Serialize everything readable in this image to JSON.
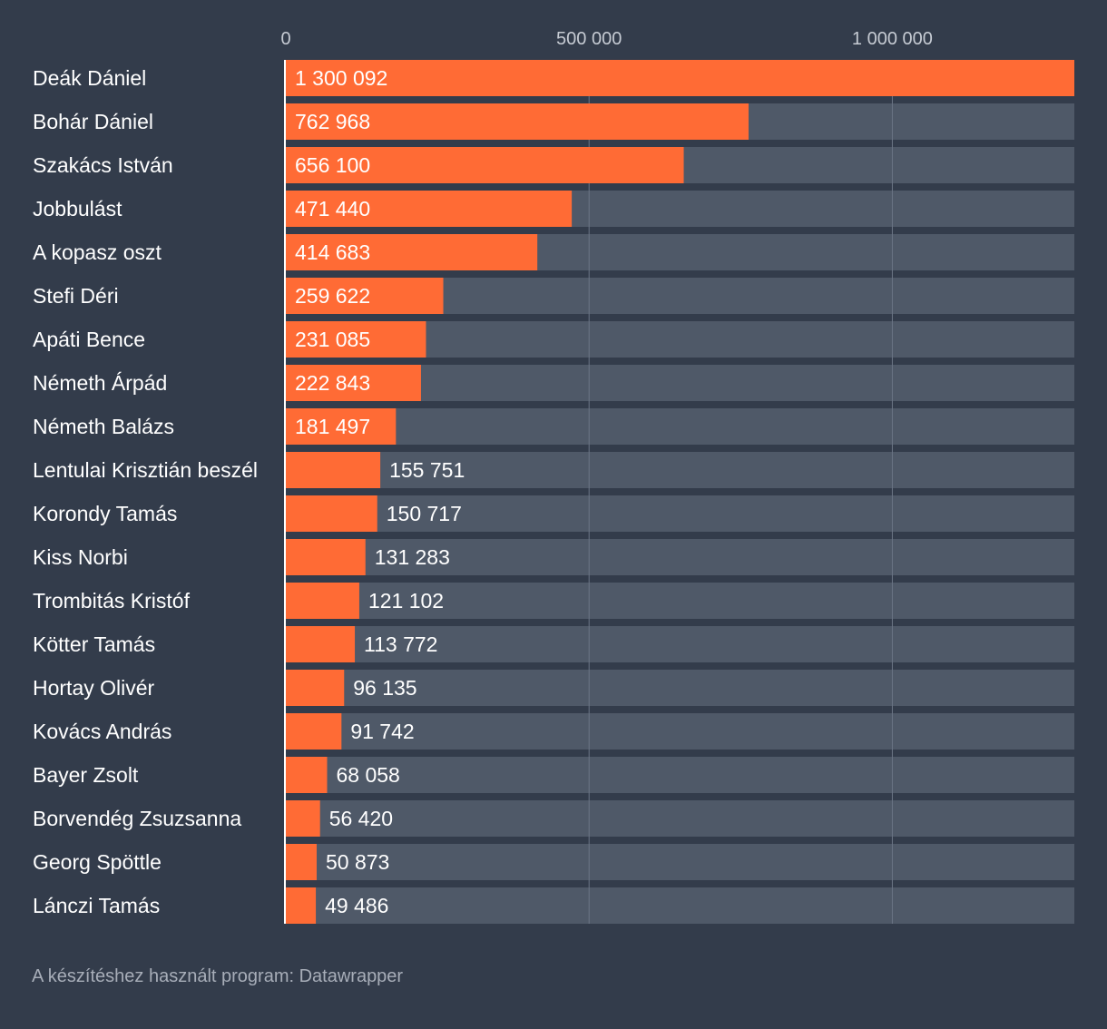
{
  "chart_data": {
    "type": "bar",
    "orientation": "horizontal",
    "title": "",
    "xlabel": "",
    "ylabel": "",
    "xlim": [
      0,
      1300092
    ],
    "ticks": [
      0,
      500000,
      1000000
    ],
    "tick_labels": [
      "0",
      "500 000",
      "1 000 000"
    ],
    "categories": [
      "Deák Dániel",
      "Bohár Dániel",
      "Szakács István",
      "Jobbulást",
      "A kopasz oszt",
      "Stefi Déri",
      "Apáti Bence",
      "Németh Árpád",
      "Németh Balázs",
      "Lentulai Krisztián beszél",
      "Korondy Tamás",
      "Kiss Norbi",
      "Trombitás Kristóf",
      "Kötter Tamás",
      "Hortay Olivér",
      "Kovács András",
      "Bayer Zsolt",
      "Borvendég Zsuzsanna",
      "Georg Spöttle",
      "Lánczi Tamás"
    ],
    "values": [
      1300092,
      762968,
      656100,
      471440,
      414683,
      259622,
      231085,
      222843,
      181497,
      155751,
      150717,
      131283,
      121102,
      113772,
      96135,
      91742,
      68058,
      56420,
      50873,
      49486
    ],
    "value_labels": [
      "1 300 092",
      "762 968",
      "656 100",
      "471 440",
      "414 683",
      "259 622",
      "231 085",
      "222 843",
      "181 497",
      "155 751",
      "150 717",
      "131 283",
      "121 102",
      "113 772",
      "96 135",
      "91 742",
      "68 058",
      "56 420",
      "50 873",
      "49 486"
    ],
    "colors": {
      "bar": "#ff6b35",
      "track": "#4f5968",
      "background": "#333c4b",
      "gridline": "#6b7585",
      "axis": "#ffffff"
    }
  },
  "footer": {
    "credit": "A készítéshez használt program: Datawrapper"
  }
}
